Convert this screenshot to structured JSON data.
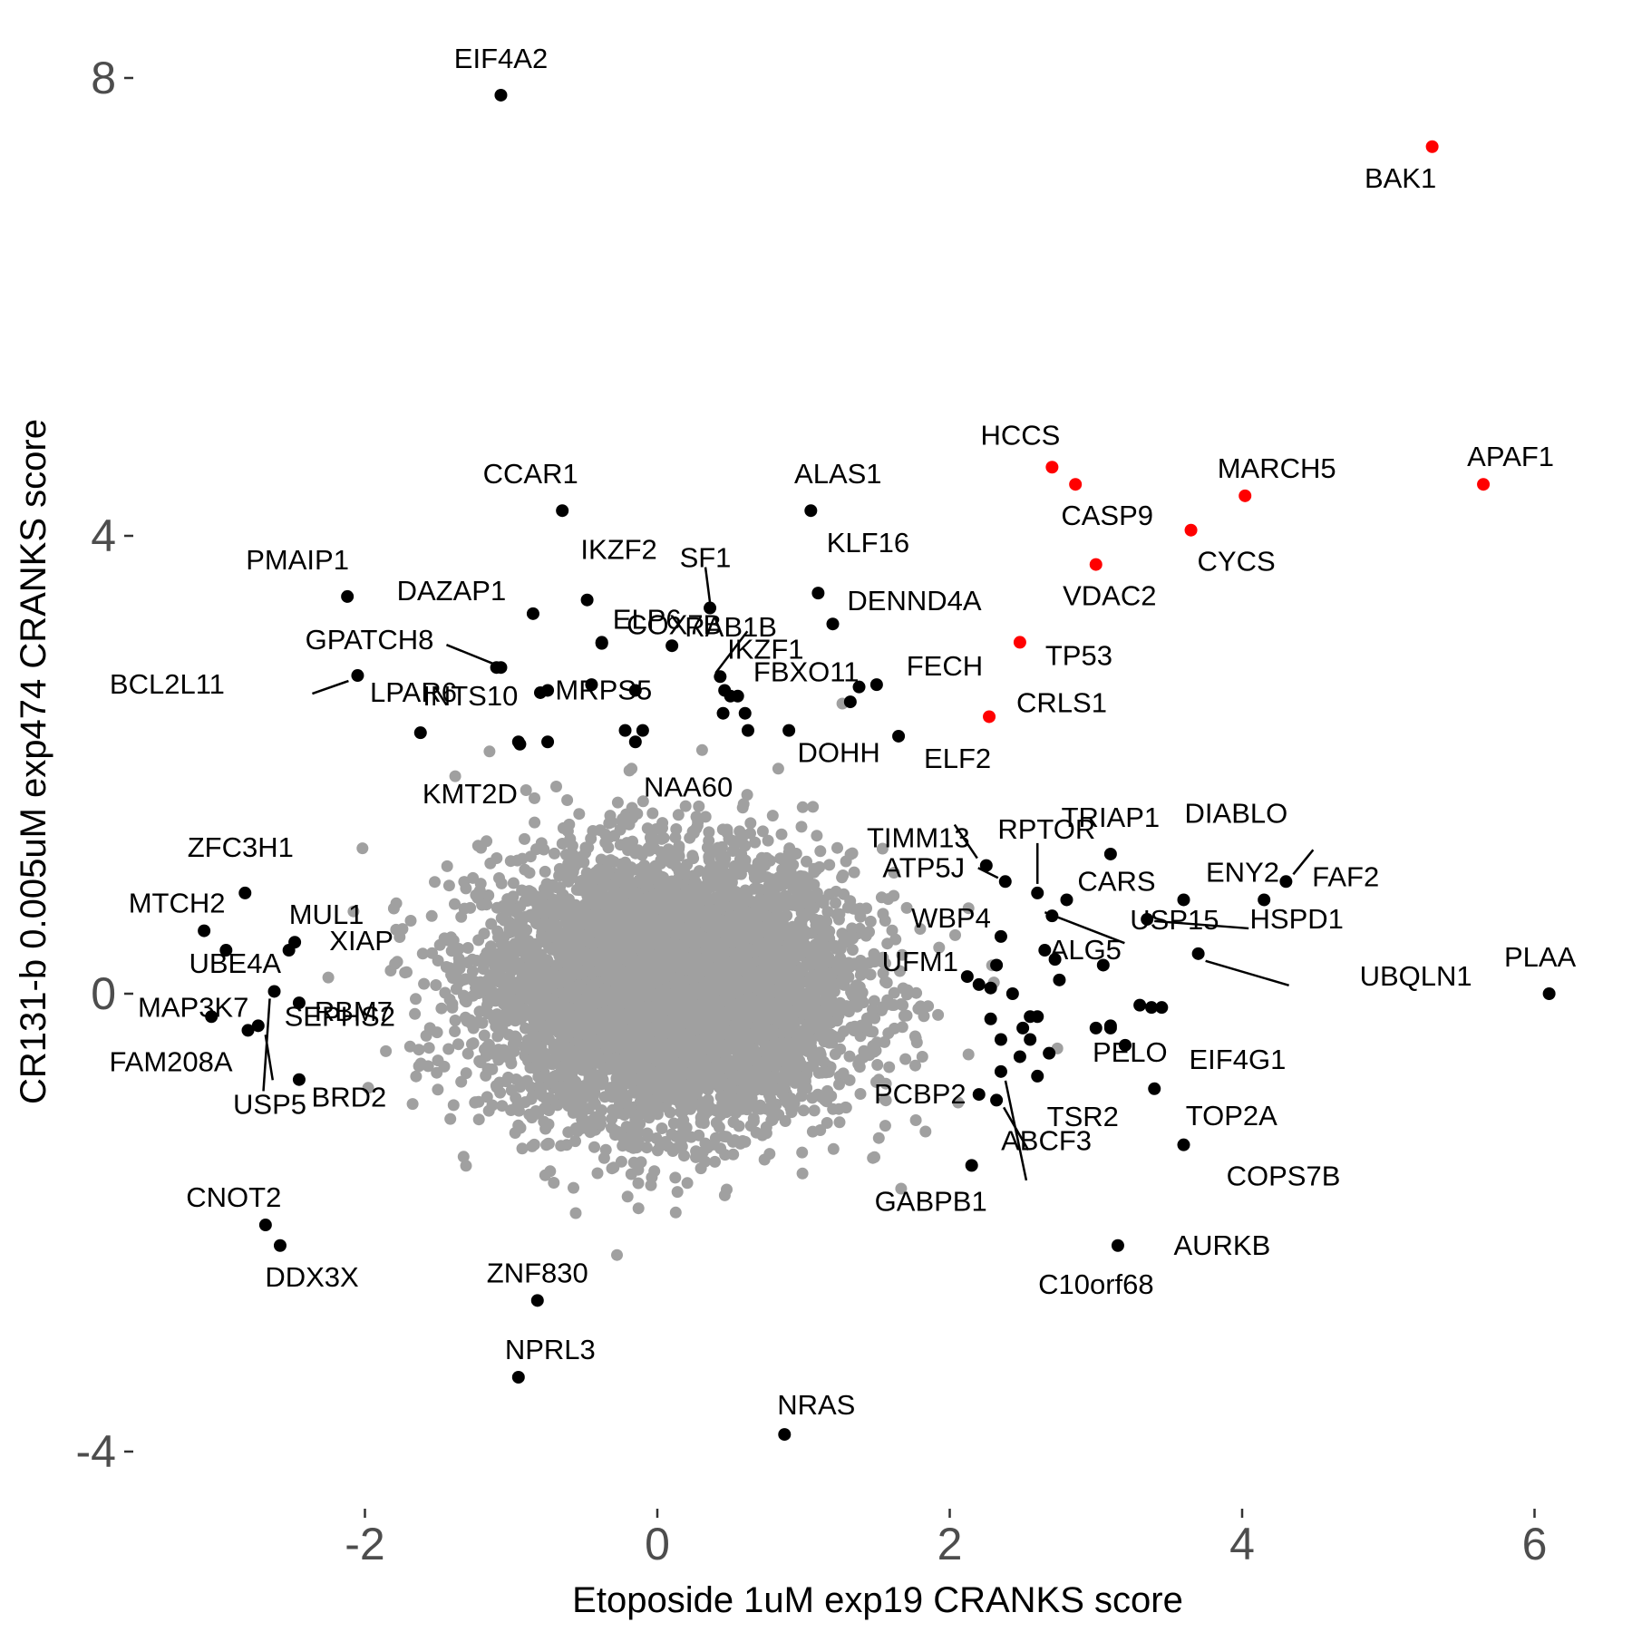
{
  "chart_data": {
    "type": "scatter",
    "xlabel": "Etoposide 1uM exp19 CRANKS score",
    "ylabel": "CR131-b 0.005uM exp474 CRANKS score",
    "xlim": [
      -2.5,
      6.5
    ],
    "ylim": [
      -4.3,
      8.0
    ],
    "x_ticks": [
      -2,
      0,
      2,
      4,
      6
    ],
    "y_ticks": [
      -4,
      0,
      4,
      8
    ],
    "grid": false,
    "legend": "none",
    "colors": {
      "background": "#ffffff",
      "bulk": "#a0a0a0",
      "hit": "#000000",
      "highlight": "#ff0000",
      "tick_text": "#4d4d4d"
    },
    "background_cloud": {
      "description_center": [
        0,
        0
      ],
      "count": 6000
    },
    "highlighted_points": [
      {
        "label": "BAK1",
        "x": 5.3,
        "y": 7.4
      },
      {
        "label": "APAF1",
        "x": 5.65,
        "y": 4.45
      },
      {
        "label": "HCCS",
        "x": 2.7,
        "y": 4.6
      },
      {
        "label": "CASP9",
        "x": 2.86,
        "y": 4.45
      },
      {
        "label": "MARCH5",
        "x": 4.02,
        "y": 4.35
      },
      {
        "label": "CYCS",
        "x": 3.65,
        "y": 4.05
      },
      {
        "label": "VDAC2",
        "x": 3.0,
        "y": 3.75
      },
      {
        "label": "TP53",
        "x": 2.48,
        "y": 3.07
      },
      {
        "label": "CRLS1",
        "x": 2.27,
        "y": 2.42
      }
    ],
    "labeled_points": [
      {
        "label": "EIF4A2",
        "x": -1.07,
        "y": 7.85
      },
      {
        "label": "CCAR1",
        "x": -0.65,
        "y": 4.22
      },
      {
        "label": "ALAS1",
        "x": 1.05,
        "y": 4.22
      },
      {
        "label": "IKZF2",
        "x": -0.48,
        "y": 3.44
      },
      {
        "label": "SF1",
        "x": 0.36,
        "y": 3.37
      },
      {
        "label": "KLF16",
        "x": 1.1,
        "y": 3.5
      },
      {
        "label": "PMAIP1",
        "x": -2.12,
        "y": 3.47
      },
      {
        "label": "DAZAP1",
        "x": -0.85,
        "y": 3.32
      },
      {
        "label": "ELP6",
        "x": -0.38,
        "y": 3.07
      },
      {
        "label": "IKZF1",
        "x": 0.43,
        "y": 2.77
      },
      {
        "label": "DENND4A",
        "x": 1.2,
        "y": 3.23
      },
      {
        "label": "GPATCH8",
        "x": -1.07,
        "y": 2.85
      },
      {
        "label": "COX7B",
        "x": -0.38,
        "y": 3.06
      },
      {
        "label": "RAB1B",
        "x": 0.1,
        "y": 3.04
      },
      {
        "label": "FBXO11",
        "x": 0.46,
        "y": 2.65
      },
      {
        "label": "FECH",
        "x": 1.5,
        "y": 2.7
      },
      {
        "label": "BCL2L11",
        "x": -2.05,
        "y": 2.78
      },
      {
        "label": "LPAR6",
        "x": -0.8,
        "y": 2.63
      },
      {
        "label": "INTS10",
        "x": -1.62,
        "y": 2.28
      },
      {
        "label": "MRPS5",
        "x": -0.15,
        "y": 2.65
      },
      {
        "label": "KMT2D",
        "x": -0.94,
        "y": 2.18
      },
      {
        "label": "NAA60",
        "x": -0.75,
        "y": 2.2
      },
      {
        "label": "DOHH",
        "x": 0.9,
        "y": 2.3
      },
      {
        "label": "ELF2",
        "x": 1.65,
        "y": 2.25
      },
      {
        "label": "TIMM13",
        "x": 2.25,
        "y": 1.12
      },
      {
        "label": "RPTOR",
        "x": 2.6,
        "y": 0.88
      },
      {
        "label": "TRIAP1",
        "x": 3.1,
        "y": 1.22
      },
      {
        "label": "DIABLO",
        "x": 4.3,
        "y": 0.98
      },
      {
        "label": "ATP5J",
        "x": 2.38,
        "y": 0.98
      },
      {
        "label": "CARS",
        "x": 2.8,
        "y": 0.82
      },
      {
        "label": "ENY2",
        "x": 3.6,
        "y": 0.82
      },
      {
        "label": "FAF2",
        "x": 4.15,
        "y": 0.82
      },
      {
        "label": "ZFC3H1",
        "x": -2.82,
        "y": 0.88
      },
      {
        "label": "MTCH2",
        "x": -3.1,
        "y": 0.55
      },
      {
        "label": "MUL1",
        "x": -2.48,
        "y": 0.45
      },
      {
        "label": "WBP4",
        "x": 2.35,
        "y": 0.5
      },
      {
        "label": "USP15",
        "x": 2.7,
        "y": 0.68
      },
      {
        "label": "HSPD1",
        "x": 3.35,
        "y": 0.65
      },
      {
        "label": "UBE4A",
        "x": -2.95,
        "y": 0.38
      },
      {
        "label": "XIAP",
        "x": -2.52,
        "y": 0.38
      },
      {
        "label": "ALG5",
        "x": 2.65,
        "y": 0.38
      },
      {
        "label": "UBQLN1",
        "x": 3.7,
        "y": 0.35
      },
      {
        "label": "PLAA",
        "x": 6.1,
        "y": 0.0
      },
      {
        "label": "UFM1",
        "x": 2.2,
        "y": 0.08
      },
      {
        "label": "PELO",
        "x": 3.45,
        "y": -0.12
      },
      {
        "label": "MAP3K7",
        "x": -3.05,
        "y": -0.2
      },
      {
        "label": "RBM7",
        "x": -2.45,
        "y": -0.08
      },
      {
        "label": "EIF4G1",
        "x": 3.1,
        "y": -0.3
      },
      {
        "label": "FAM208A",
        "x": -2.8,
        "y": -0.32
      },
      {
        "label": "SEPHS2",
        "x": -2.73,
        "y": -0.28
      },
      {
        "label": "USP5",
        "x": -2.62,
        "y": 0.02
      },
      {
        "label": "BRD2",
        "x": -2.45,
        "y": -0.75
      },
      {
        "label": "TSR2",
        "x": 2.6,
        "y": -0.72
      },
      {
        "label": "PCBP2",
        "x": 2.2,
        "y": -0.88
      },
      {
        "label": "TOP2A",
        "x": 3.4,
        "y": -0.83
      },
      {
        "label": "ABCF3",
        "x": 2.32,
        "y": -0.93
      },
      {
        "label": "COPS7B",
        "x": 3.6,
        "y": -1.32
      },
      {
        "label": "C10orf68",
        "x": 2.35,
        "y": -0.68
      },
      {
        "label": "GABPB1",
        "x": 2.15,
        "y": -1.5
      },
      {
        "label": "CNOT2",
        "x": -2.68,
        "y": -2.02
      },
      {
        "label": "DDX3X",
        "x": -2.58,
        "y": -2.2
      },
      {
        "label": "AURKB",
        "x": 3.15,
        "y": -2.2
      },
      {
        "label": "ZNF830",
        "x": -0.82,
        "y": -2.68
      },
      {
        "label": "NPRL3",
        "x": -0.95,
        "y": -3.35
      },
      {
        "label": "NRAS",
        "x": 0.87,
        "y": -3.85
      }
    ],
    "unlabeled_hits": [
      {
        "x": -1.1,
        "y": 2.85
      },
      {
        "x": -0.75,
        "y": 2.65
      },
      {
        "x": -0.95,
        "y": 2.2
      },
      {
        "x": -0.45,
        "y": 2.7
      },
      {
        "x": -0.1,
        "y": 2.3
      },
      {
        "x": -0.22,
        "y": 2.3
      },
      {
        "x": -0.15,
        "y": 2.2
      },
      {
        "x": 0.45,
        "y": 2.45
      },
      {
        "x": 0.6,
        "y": 2.45
      },
      {
        "x": 0.55,
        "y": 2.6
      },
      {
        "x": 0.62,
        "y": 2.3
      },
      {
        "x": 0.5,
        "y": 2.6
      },
      {
        "x": 1.32,
        "y": 2.55
      },
      {
        "x": 1.38,
        "y": 2.68
      },
      {
        "x": 2.12,
        "y": 0.15
      },
      {
        "x": 2.28,
        "y": 0.05
      },
      {
        "x": 2.32,
        "y": 0.25
      },
      {
        "x": 2.43,
        "y": 0.0
      },
      {
        "x": 2.55,
        "y": -0.2
      },
      {
        "x": 2.35,
        "y": -0.4
      },
      {
        "x": 2.5,
        "y": -0.3
      },
      {
        "x": 2.55,
        "y": -0.4
      },
      {
        "x": 2.48,
        "y": -0.55
      },
      {
        "x": 2.68,
        "y": -0.52
      },
      {
        "x": 2.75,
        "y": 0.12
      },
      {
        "x": 2.72,
        "y": 0.3
      },
      {
        "x": 3.05,
        "y": 0.25
      },
      {
        "x": 3.0,
        "y": -0.3
      },
      {
        "x": 3.2,
        "y": -0.45
      },
      {
        "x": 3.3,
        "y": -0.1
      },
      {
        "x": 3.38,
        "y": -0.12
      },
      {
        "x": 3.1,
        "y": -0.28
      },
      {
        "x": 2.28,
        "y": -0.22
      },
      {
        "x": 2.6,
        "y": -0.2
      }
    ]
  }
}
